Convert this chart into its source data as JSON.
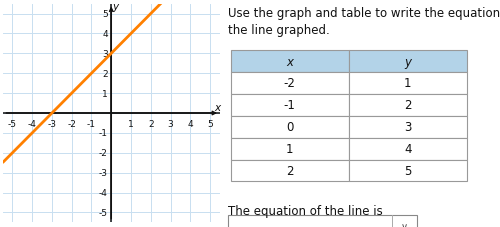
{
  "graph": {
    "xlim": [
      -5.5,
      5.5
    ],
    "ylim": [
      -5.5,
      5.5
    ],
    "xticks": [
      -5,
      -4,
      -3,
      -2,
      -1,
      1,
      2,
      3,
      4,
      5
    ],
    "yticks": [
      -5,
      -4,
      -3,
      -2,
      -1,
      1,
      2,
      3,
      4,
      5
    ],
    "xlabel": "x",
    "ylabel": "y",
    "line_x": [
      -5.5,
      2.7
    ],
    "line_y": [
      -2.5,
      5.7
    ],
    "line_color": "#FF8000",
    "line_width": 2.0,
    "grid_color": "#c8dff0",
    "axis_color": "#111111",
    "bg_color": "#ffffff",
    "tick_fontsize": 6.5
  },
  "table": {
    "x_vals": [
      -2,
      -1,
      0,
      1,
      2
    ],
    "y_vals": [
      1,
      2,
      3,
      4,
      5
    ],
    "header_bg": "#b3d3e8",
    "cell_bg": "#ffffff",
    "border_color": "#999999",
    "header_labels": [
      "x",
      "y"
    ],
    "fontsize": 8.5
  },
  "text": {
    "instruction": "Use the graph and table to write the equation that describes\nthe line graphed.",
    "equation_label": "The equation of the line is",
    "fontsize": 8.5,
    "title_fontsize": 8.5
  }
}
